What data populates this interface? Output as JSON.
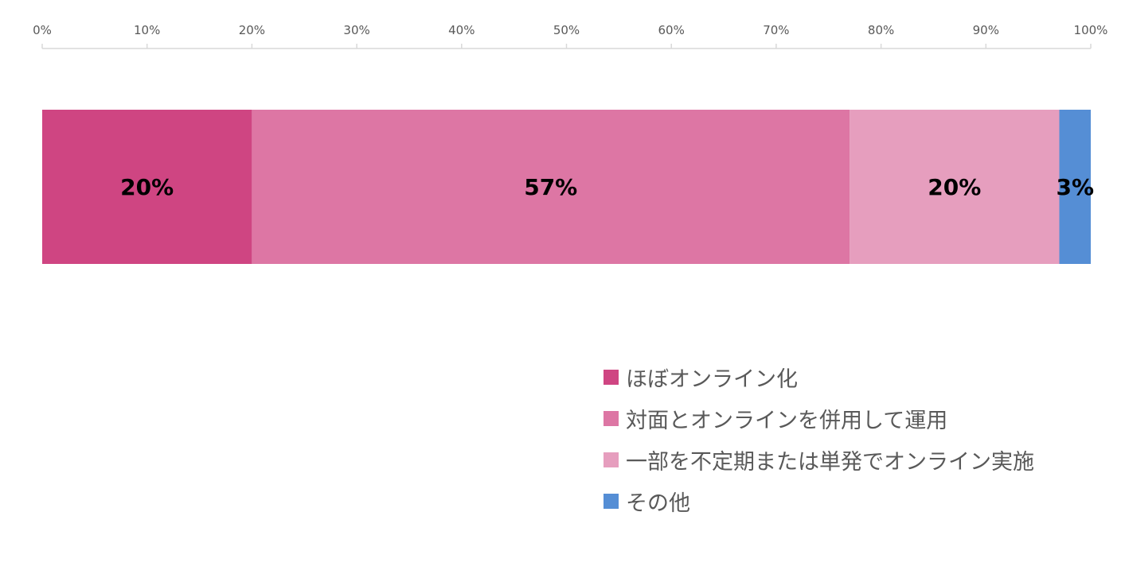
{
  "chart_data": {
    "type": "bar",
    "orientation": "horizontal",
    "stacked": true,
    "title": "",
    "xlabel": "",
    "ylabel": "",
    "xlim": [
      0,
      100
    ],
    "x_ticks": [
      "0%",
      "10%",
      "20%",
      "30%",
      "40%",
      "50%",
      "60%",
      "70%",
      "80%",
      "90%",
      "100%"
    ],
    "grid": false,
    "legend_position": "bottom-right",
    "series": [
      {
        "name": "ほぼオンライン化",
        "value": 20,
        "label": "20%",
        "color": "#CF4582"
      },
      {
        "name": "対面とオンラインを併用して運用",
        "value": 57,
        "label": "57%",
        "color": "#DD76A4"
      },
      {
        "name": "一部を不定期または単発でオンライン実施",
        "value": 20,
        "label": "20%",
        "color": "#E69EBE"
      },
      {
        "name": "その他",
        "value": 3,
        "label": "3%",
        "color": "#558ED5"
      }
    ]
  }
}
